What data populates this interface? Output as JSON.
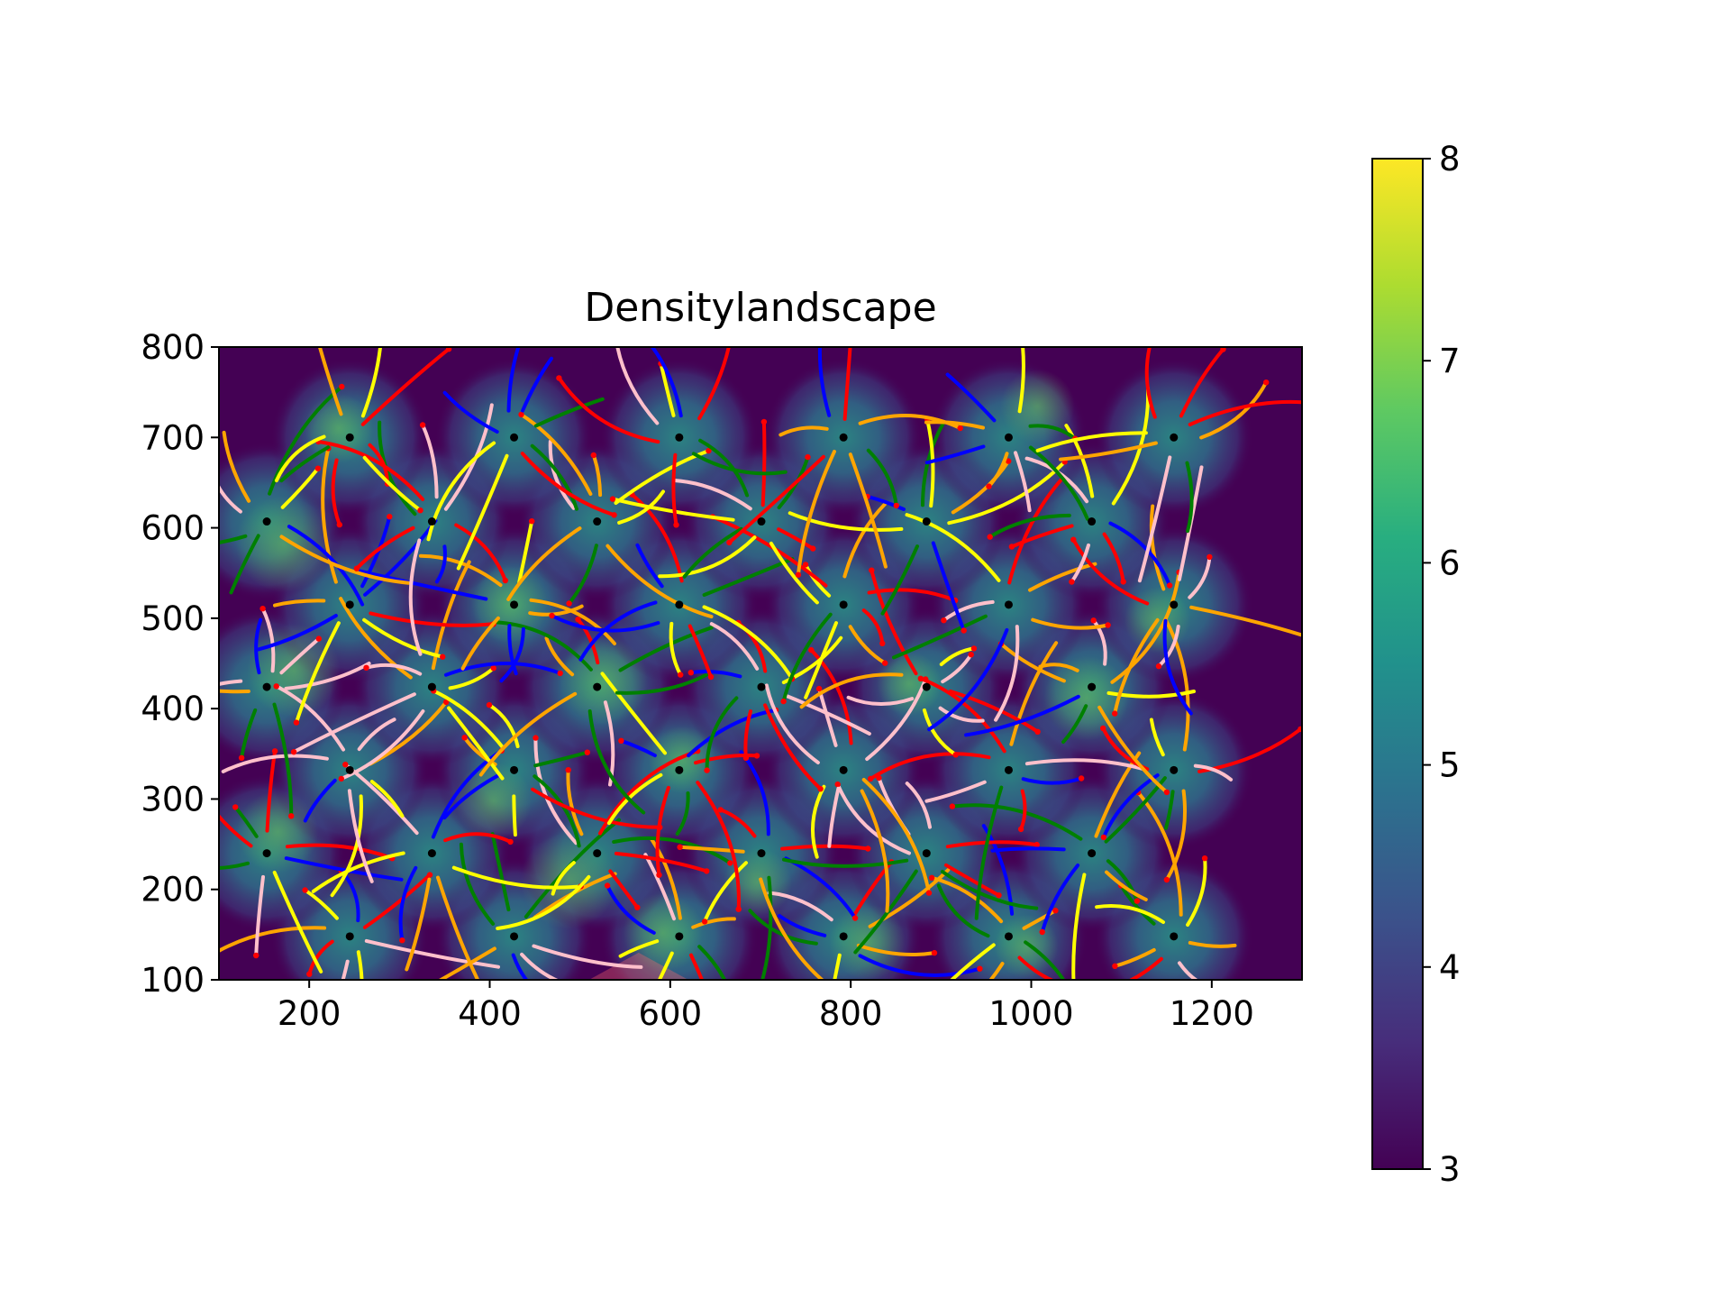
{
  "chart_data": {
    "type": "heatmap",
    "title": "Densitylandscape",
    "xlabel": "",
    "ylabel": "",
    "xlim": [
      100,
      1300
    ],
    "ylim": [
      100,
      800
    ],
    "xticks": [
      200,
      400,
      600,
      800,
      1000,
      1200
    ],
    "yticks": [
      100,
      200,
      300,
      400,
      500,
      600,
      700,
      800
    ],
    "grid": false,
    "colorbar": {
      "colormap": "viridis",
      "range": [
        3,
        8
      ],
      "ticks": [
        3,
        4,
        5,
        6,
        7,
        8
      ]
    },
    "background_value": 3,
    "lattice": {
      "rows_y": [
        148,
        240,
        332,
        424,
        515,
        607,
        700
      ],
      "even_row_x": [
        245,
        427,
        610,
        792,
        975,
        1158
      ],
      "odd_row_x": [
        153,
        336,
        519,
        701,
        884,
        1067
      ],
      "center_value": 5.6,
      "hotspot_value": 6.8
    },
    "curve_colors": [
      "#ff0000",
      "#ffff00",
      "#ffa500",
      "#0000ff",
      "#008000",
      "#ffc0cb"
    ],
    "anomaly": {
      "x": 565,
      "y": 125,
      "color": "#ff6666"
    },
    "marker_colors": {
      "center": "#000000",
      "endpoint": "#ff0000"
    }
  }
}
